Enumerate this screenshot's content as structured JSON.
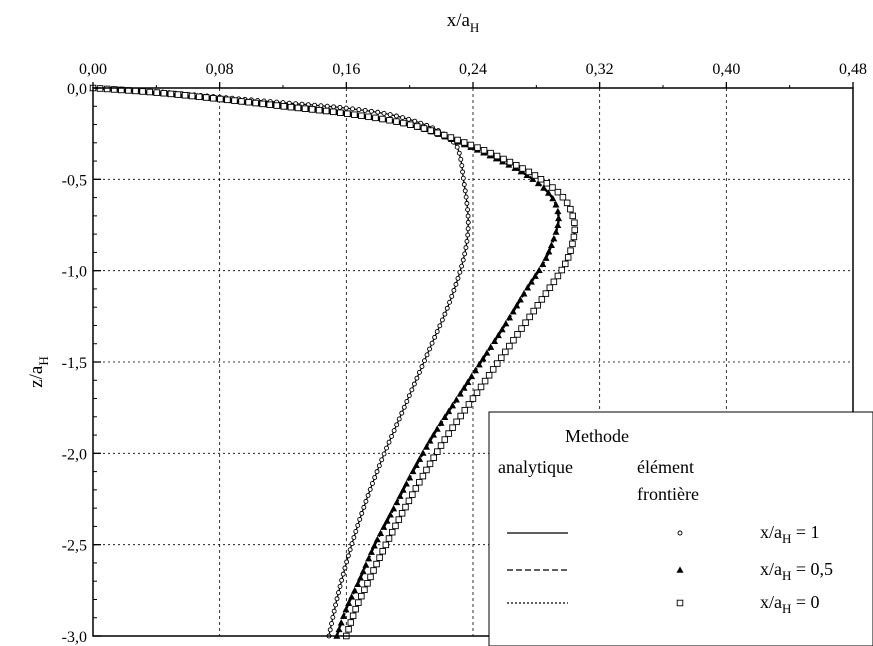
{
  "chart_data": {
    "type": "line",
    "x_axis": {
      "position": "top",
      "label_main": "x/a",
      "label_sub": "H",
      "ticks": [
        0.0,
        0.08,
        0.16,
        0.24,
        0.32,
        0.4,
        0.48
      ],
      "tick_labels": [
        "0,00",
        "0,08",
        "0,16",
        "0,24",
        "0,32",
        "0,40",
        "0,48"
      ],
      "range": [
        0.0,
        0.48
      ]
    },
    "y_axis": {
      "label_main": "z/a",
      "label_sub": "H",
      "ticks": [
        0.0,
        -0.5,
        -1.0,
        -1.5,
        -2.0,
        -2.5,
        -3.0
      ],
      "tick_labels": [
        "0,0",
        "-0,5",
        "-1,0",
        "-1,5",
        "-2,0",
        "-2,5",
        "-3,0"
      ],
      "range": [
        -3.0,
        0.0
      ]
    },
    "grid": true,
    "legend": {
      "placement": "bottom-right",
      "header": "Methode",
      "col1": "analytique",
      "col2_line1": "élément",
      "col2_line2": "frontière",
      "entries": [
        {
          "label_main": "x/a",
          "label_sub": "H",
          "label_tail": " = 1",
          "line_style": "solid",
          "marker": "circle"
        },
        {
          "label_main": "x/a",
          "label_sub": "H",
          "label_tail": " = 0,5",
          "line_style": "dashed",
          "marker": "triangle"
        },
        {
          "label_main": "x/a",
          "label_sub": "H",
          "label_tail": " = 0",
          "line_style": "dotted",
          "marker": "square"
        }
      ]
    },
    "series": [
      {
        "legend_ref": 0,
        "line_style": "solid",
        "marker": "circle",
        "points": [
          [
            0.0,
            0.0
          ],
          [
            0.04,
            -0.02
          ],
          [
            0.08,
            -0.05
          ],
          [
            0.12,
            -0.08
          ],
          [
            0.16,
            -0.11
          ],
          [
            0.19,
            -0.15
          ],
          [
            0.215,
            -0.22
          ],
          [
            0.228,
            -0.3
          ],
          [
            0.232,
            -0.38
          ],
          [
            0.234,
            -0.5
          ],
          [
            0.236,
            -0.62
          ],
          [
            0.237,
            -0.73
          ],
          [
            0.236,
            -0.85
          ],
          [
            0.232,
            -1.0
          ],
          [
            0.224,
            -1.2
          ],
          [
            0.214,
            -1.4
          ],
          [
            0.204,
            -1.6
          ],
          [
            0.194,
            -1.8
          ],
          [
            0.184,
            -2.0
          ],
          [
            0.175,
            -2.2
          ],
          [
            0.167,
            -2.4
          ],
          [
            0.16,
            -2.6
          ],
          [
            0.154,
            -2.8
          ],
          [
            0.149,
            -3.0
          ]
        ]
      },
      {
        "legend_ref": 1,
        "line_style": "dashed",
        "marker": "triangle",
        "points": [
          [
            0.0,
            0.0
          ],
          [
            0.04,
            -0.025
          ],
          [
            0.08,
            -0.06
          ],
          [
            0.12,
            -0.1
          ],
          [
            0.16,
            -0.14
          ],
          [
            0.2,
            -0.2
          ],
          [
            0.232,
            -0.3
          ],
          [
            0.258,
            -0.4
          ],
          [
            0.278,
            -0.5
          ],
          [
            0.29,
            -0.6
          ],
          [
            0.294,
            -0.7
          ],
          [
            0.292,
            -0.8
          ],
          [
            0.285,
            -0.95
          ],
          [
            0.274,
            -1.1
          ],
          [
            0.26,
            -1.3
          ],
          [
            0.245,
            -1.5
          ],
          [
            0.23,
            -1.7
          ],
          [
            0.215,
            -1.9
          ],
          [
            0.202,
            -2.1
          ],
          [
            0.19,
            -2.3
          ],
          [
            0.178,
            -2.5
          ],
          [
            0.168,
            -2.7
          ],
          [
            0.16,
            -2.85
          ],
          [
            0.154,
            -3.0
          ]
        ]
      },
      {
        "legend_ref": 2,
        "line_style": "dotted",
        "marker": "square",
        "points": [
          [
            0.0,
            0.0
          ],
          [
            0.04,
            -0.025
          ],
          [
            0.08,
            -0.06
          ],
          [
            0.12,
            -0.1
          ],
          [
            0.16,
            -0.14
          ],
          [
            0.2,
            -0.2
          ],
          [
            0.235,
            -0.3
          ],
          [
            0.262,
            -0.4
          ],
          [
            0.283,
            -0.5
          ],
          [
            0.297,
            -0.6
          ],
          [
            0.303,
            -0.7
          ],
          [
            0.304,
            -0.8
          ],
          [
            0.299,
            -0.95
          ],
          [
            0.288,
            -1.1
          ],
          [
            0.272,
            -1.3
          ],
          [
            0.256,
            -1.5
          ],
          [
            0.24,
            -1.7
          ],
          [
            0.224,
            -1.9
          ],
          [
            0.21,
            -2.1
          ],
          [
            0.197,
            -2.3
          ],
          [
            0.185,
            -2.5
          ],
          [
            0.174,
            -2.7
          ],
          [
            0.166,
            -2.85
          ],
          [
            0.16,
            -3.0
          ]
        ]
      }
    ]
  }
}
